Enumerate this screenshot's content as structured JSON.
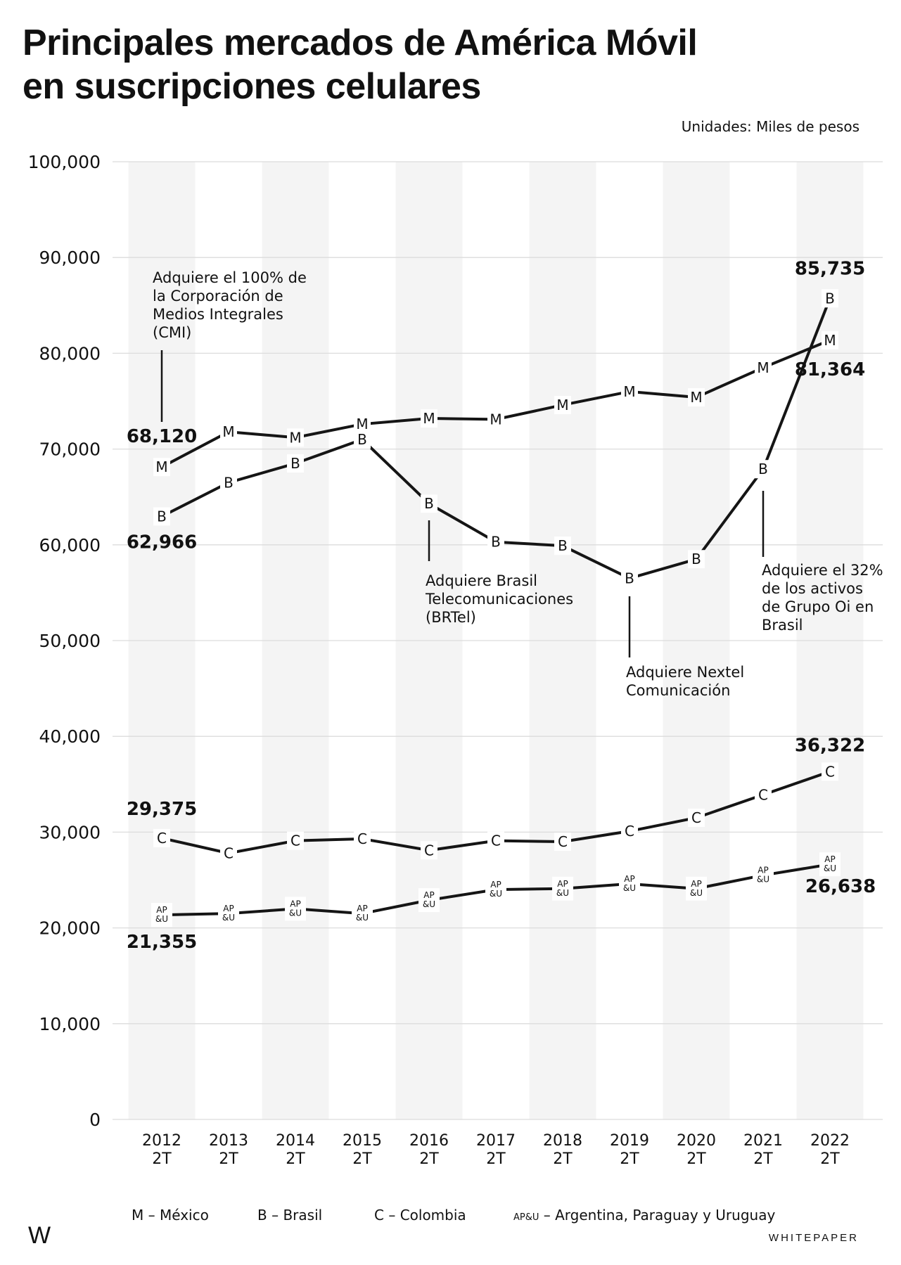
{
  "header": {
    "title_line1": "Principales mercados de América Móvil",
    "title_line2": "en suscripciones celulares",
    "units": "Unidades: Miles de pesos"
  },
  "chart_data": {
    "type": "line",
    "title": "Principales mercados de América Móvil en suscripciones celulares",
    "subtitle": "Unidades: Miles de pesos",
    "ylim": [
      0,
      100000
    ],
    "yticks": [
      0,
      10000,
      20000,
      30000,
      40000,
      50000,
      60000,
      70000,
      80000,
      90000,
      100000
    ],
    "ytick_labels": [
      "0",
      "10,000",
      "20,000",
      "30,000",
      "40,000",
      "50,000",
      "60,000",
      "70,000",
      "80,000",
      "90,000",
      "100,000"
    ],
    "categories": [
      "2012 2T",
      "2013 2T",
      "2014 2T",
      "2015 2T",
      "2016 2T",
      "2017 2T",
      "2018 2T",
      "2019 2T",
      "2020 2T",
      "2021 2T",
      "2022 2T"
    ],
    "category_lines": [
      [
        "2012",
        "2T"
      ],
      [
        "2013",
        "2T"
      ],
      [
        "2014",
        "2T"
      ],
      [
        "2015",
        "2T"
      ],
      [
        "2016",
        "2T"
      ],
      [
        "2017",
        "2T"
      ],
      [
        "2018",
        "2T"
      ],
      [
        "2019",
        "2T"
      ],
      [
        "2020",
        "2T"
      ],
      [
        "2021",
        "2T"
      ],
      [
        "2022",
        "2T"
      ]
    ],
    "grid": true,
    "series": [
      {
        "name": "México",
        "marker": "M",
        "values": [
          68120,
          71800,
          71200,
          72600,
          73200,
          73100,
          74600,
          76000,
          75400,
          78500,
          81364
        ]
      },
      {
        "name": "Brasil",
        "marker": "B",
        "values": [
          62966,
          66500,
          68500,
          71000,
          64300,
          60300,
          59900,
          56500,
          58500,
          67900,
          85735
        ]
      },
      {
        "name": "Colombia",
        "marker": "C",
        "values": [
          29375,
          27800,
          29100,
          29300,
          28100,
          29100,
          29000,
          30100,
          31500,
          33900,
          36322
        ]
      },
      {
        "name": "Argentina, Paraguay y Uruguay",
        "marker": "AP&U",
        "values": [
          21355,
          21500,
          22000,
          21500,
          22900,
          24000,
          24100,
          24600,
          24100,
          25500,
          26638
        ]
      }
    ],
    "value_labels": [
      {
        "series": 0,
        "index": 0,
        "text": "68,120"
      },
      {
        "series": 0,
        "index": 10,
        "text": "81,364"
      },
      {
        "series": 1,
        "index": 0,
        "text": "62,966"
      },
      {
        "series": 1,
        "index": 10,
        "text": "85,735"
      },
      {
        "series": 2,
        "index": 0,
        "text": "29,375"
      },
      {
        "series": 2,
        "index": 10,
        "text": "36,322"
      },
      {
        "series": 3,
        "index": 0,
        "text": "21,355"
      },
      {
        "series": 3,
        "index": 10,
        "text": "26,638"
      }
    ],
    "annotations": [
      {
        "series": 0,
        "index": 0,
        "lines": [
          "Adquiere el 100% de",
          "la Corporación de",
          "Medios Integrales",
          "(CMI)"
        ]
      },
      {
        "series": 1,
        "index": 4,
        "lines": [
          "Adquiere Brasil",
          "Telecomunicaciones",
          "(BRTel)"
        ]
      },
      {
        "series": 1,
        "index": 7,
        "lines": [
          "Adquiere Nextel",
          "Comunicación"
        ]
      },
      {
        "series": 1,
        "index": 9,
        "lines": [
          "Adquiere el 32%",
          "de los activos",
          "de Grupo Oi en",
          "Brasil"
        ]
      }
    ],
    "legend": [
      {
        "marker": "M",
        "label": "México"
      },
      {
        "marker": "B",
        "label": "Brasil"
      },
      {
        "marker": "C",
        "label": "Colombia"
      },
      {
        "marker": "AP&U",
        "label": "Argentina, Paraguay y Uruguay"
      }
    ],
    "legend_position": "bottom"
  },
  "brand": {
    "logo": "W",
    "name": "WHITEPAPER"
  }
}
